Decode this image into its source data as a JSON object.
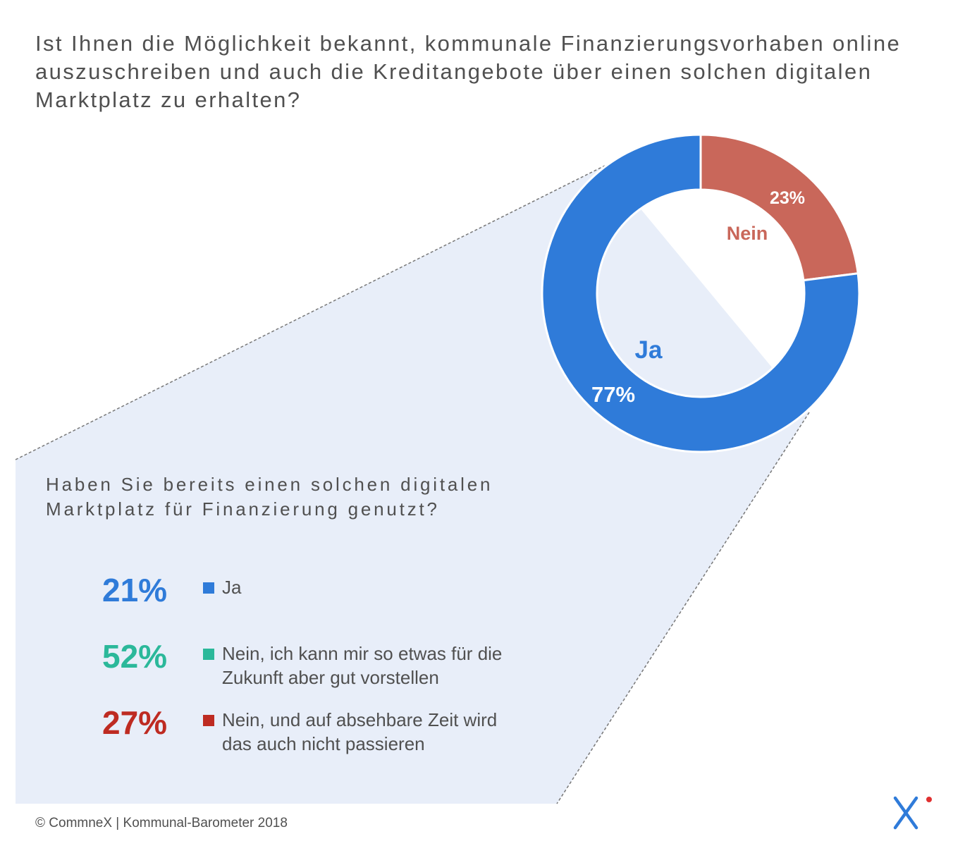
{
  "title": "Ist Ihnen die Möglichkeit bekannt, kommunale Finanzierungsvorhaben online auszuschreiben und auch die Kreditangebote über einen solchen digitalen Marktplatz zu erhalten?",
  "subtitle": "Haben Sie bereits einen solchen digitalen Marktplatz für Finanzierung genutzt?",
  "footer": "© CommneX  |  Kommunal-Barometer 2018",
  "colors": {
    "ja": "#2f7bd9",
    "nein": "#c9675a",
    "teal": "#2bb89a",
    "red": "#be2b22",
    "panel": "#e8eef9",
    "text": "#505050"
  },
  "chart_data": [
    {
      "type": "pie",
      "style": "donut",
      "title": "Ist Ihnen die Möglichkeit bekannt, kommunale Finanzierungsvorhaben online auszuschreiben und auch die Kreditangebote über einen solchen digitalen Marktplatz zu erhalten?",
      "slices": [
        {
          "label": "Nein",
          "value": 23,
          "value_label": "23%",
          "color": "#c9675a"
        },
        {
          "label": "Ja",
          "value": 77,
          "value_label": "77%",
          "color": "#2f7bd9"
        }
      ]
    },
    {
      "type": "table",
      "title": "Haben Sie bereits einen solchen digitalen Marktplatz für Finanzierung genutzt?",
      "rows": [
        {
          "value": 21,
          "value_label": "21%",
          "label_lines": [
            "Ja"
          ],
          "color": "#2f7bd9"
        },
        {
          "value": 52,
          "value_label": "52%",
          "label_lines": [
            "Nein, ich kann mir so etwas für die",
            "Zukunft aber gut vorstellen"
          ],
          "color": "#2bb89a"
        },
        {
          "value": 27,
          "value_label": "27%",
          "label_lines": [
            "Nein, und auf absehbare Zeit wird",
            "das auch nicht passieren"
          ],
          "color": "#be2b22"
        }
      ]
    }
  ]
}
